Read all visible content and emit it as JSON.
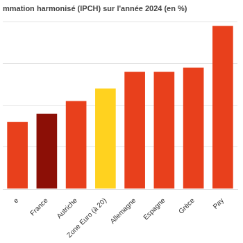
{
  "chart_data": {
    "type": "bar",
    "title": "mmation harmonisé (IPCH) sur l'année 2024 (en %)",
    "categories": [
      "e",
      "France",
      "Autriche",
      "Zone Euro (à 20)",
      "Allemagne",
      "Espagne",
      "Grèce",
      "Pay"
    ],
    "values": [
      1.6,
      1.8,
      2.1,
      2.4,
      2.8,
      2.8,
      2.9,
      3.9
    ],
    "colors": [
      "#e8401c",
      "#8c0f06",
      "#e8401c",
      "#ffd21f",
      "#e8401c",
      "#e8401c",
      "#e8401c",
      "#e8401c"
    ],
    "ylim": [
      0,
      4
    ],
    "yticks": [
      0,
      1,
      2,
      3,
      4
    ],
    "grid": true,
    "tick_labels": "x"
  }
}
